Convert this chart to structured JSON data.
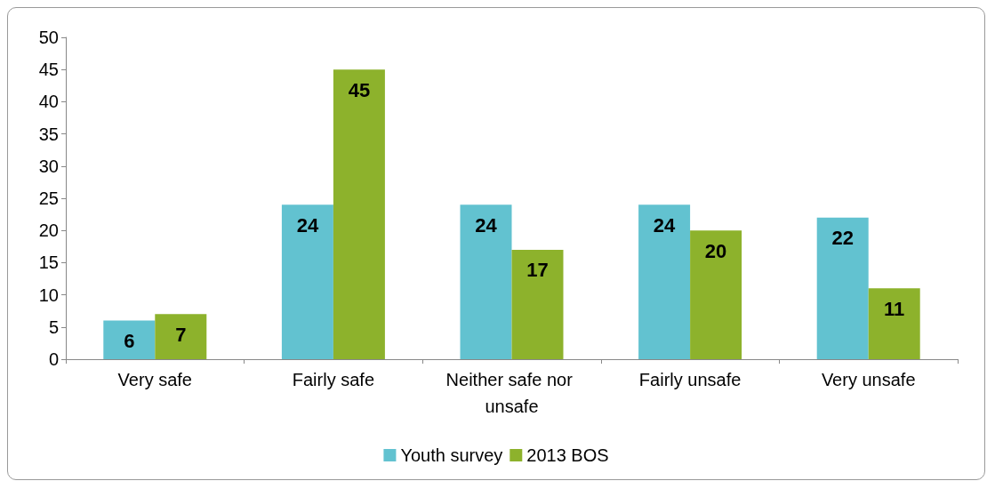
{
  "chart_data": {
    "type": "bar",
    "categories": [
      "Very safe",
      "Fairly safe",
      "Neither safe nor unsafe",
      "Fairly unsafe",
      "Very unsafe"
    ],
    "series": [
      {
        "name": "Youth survey",
        "color": "#62c2d0",
        "values": [
          6,
          24,
          24,
          24,
          22
        ]
      },
      {
        "name": "2013 BOS",
        "color": "#8db22c",
        "values": [
          7,
          45,
          17,
          20,
          11
        ]
      }
    ],
    "ylim": [
      0,
      50
    ],
    "yticks": [
      0,
      5,
      10,
      15,
      20,
      25,
      30,
      35,
      40,
      45,
      50
    ],
    "grid": false,
    "legend": "bottom",
    "data_labels": true
  }
}
